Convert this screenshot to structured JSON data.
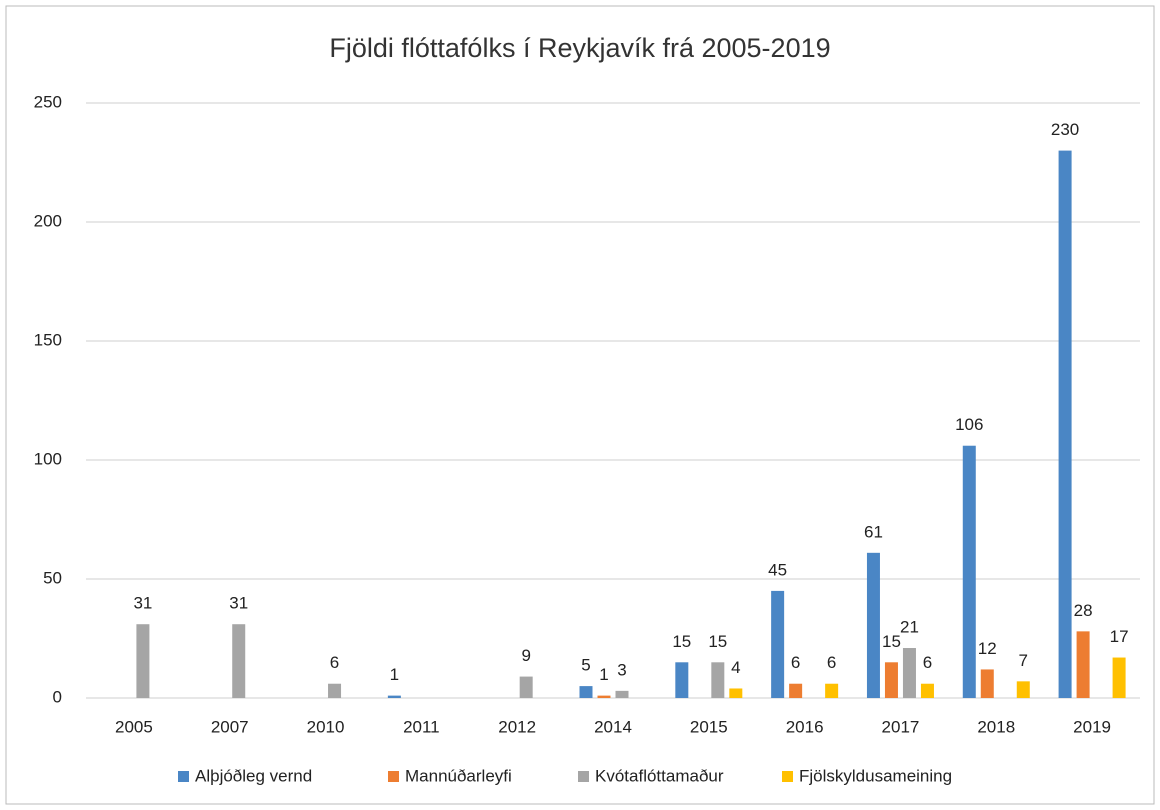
{
  "chart_data": {
    "type": "bar",
    "title": "Fjöldi flóttafólks í Reykjavík frá 2005-2019",
    "categories": [
      "2005",
      "2007",
      "2010",
      "2011",
      "2012",
      "2014",
      "2015",
      "2016",
      "2017",
      "2018",
      "2019"
    ],
    "series": [
      {
        "name": "Alþjóðleg vernd",
        "color": "#4a86c5",
        "values": [
          null,
          null,
          null,
          1,
          null,
          5,
          15,
          45,
          61,
          106,
          230
        ]
      },
      {
        "name": "Mannúðarleyfi",
        "color": "#ed7d31",
        "values": [
          null,
          null,
          null,
          null,
          null,
          1,
          null,
          6,
          15,
          12,
          28
        ]
      },
      {
        "name": "Kvótaflóttamaður",
        "color": "#a5a5a5",
        "values": [
          31,
          31,
          6,
          null,
          9,
          3,
          15,
          null,
          21,
          null,
          null
        ]
      },
      {
        "name": "Fjölskyldusameining",
        "color": "#ffc000",
        "values": [
          null,
          null,
          null,
          null,
          null,
          null,
          4,
          6,
          6,
          7,
          17
        ]
      }
    ],
    "ylim": [
      0,
      250
    ],
    "yticks": [
      0,
      50,
      100,
      150,
      200,
      250
    ],
    "grid": true,
    "legend": "bottom"
  }
}
